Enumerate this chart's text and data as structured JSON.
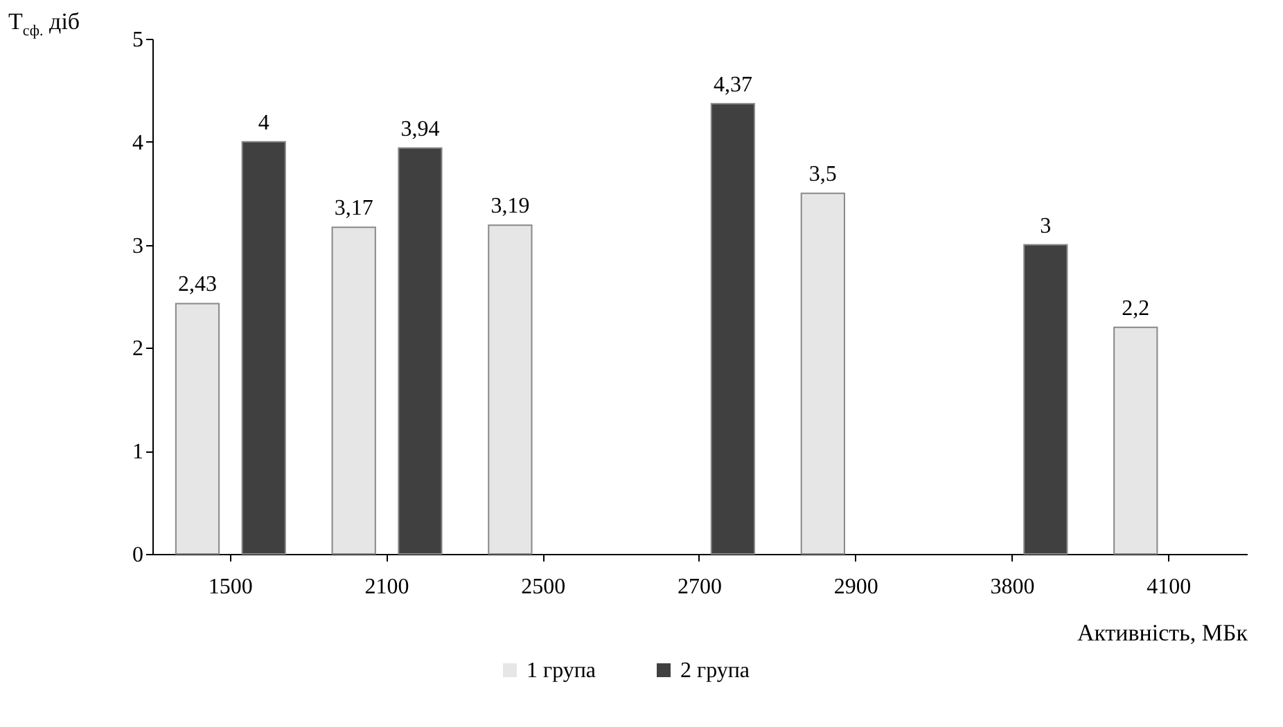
{
  "chart_data": {
    "type": "bar",
    "xlabel": "Активність, МБк",
    "ylabel": "T$_{сф.}$ діб",
    "categories": [
      "1500",
      "2100",
      "2500",
      "2700",
      "2900",
      "3800",
      "4100"
    ],
    "series": [
      {
        "name": "1 група",
        "color": "#e6e6e6",
        "values": [
          2.43,
          3.17,
          3.19,
          null,
          3.5,
          null,
          2.2
        ],
        "value_labels": [
          "2,43",
          "3,17",
          "3,19",
          null,
          "3,5",
          null,
          "2,2"
        ]
      },
      {
        "name": "2 група",
        "color": "#404040",
        "values": [
          4,
          3.94,
          null,
          4.37,
          null,
          3,
          null
        ],
        "value_labels": [
          "4",
          "3,94",
          null,
          "4,37",
          null,
          "3",
          null
        ]
      }
    ],
    "ylim": [
      0,
      5
    ],
    "yticks": [
      0,
      1,
      2,
      3,
      4,
      5
    ],
    "grid": false,
    "legend": "bottom"
  }
}
